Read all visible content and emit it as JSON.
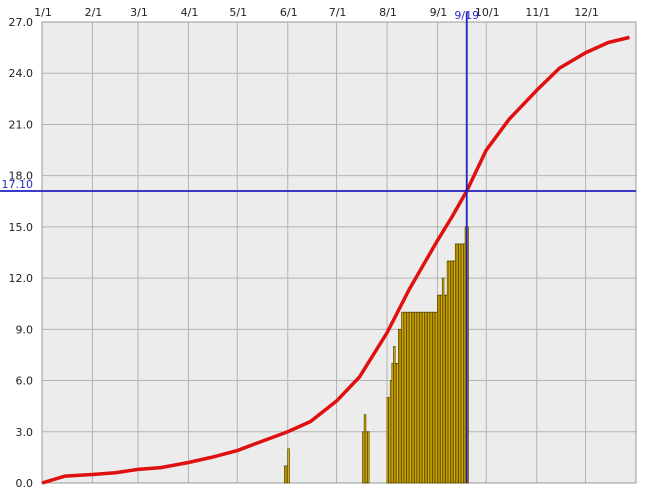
{
  "colors": {
    "plot_background": "#ececec",
    "grid": "#b4b4b4",
    "curve": "#e01010",
    "bar_fill": "#f5c400",
    "bar_stroke": "#5a4a00",
    "crosshair": "#2020c0"
  },
  "chart_data": {
    "type": "bar",
    "title": "",
    "xlabel": "",
    "ylabel": "",
    "x_tick_labels": [
      "1/1",
      "2/1",
      "3/1",
      "4/1",
      "5/1",
      "6/1",
      "7/1",
      "8/1",
      "9/1",
      "10/1",
      "11/1",
      "12/1"
    ],
    "y_tick_labels": [
      "0.0",
      "3.0",
      "6.0",
      "9.0",
      "12.0",
      "15.0",
      "18.0",
      "21.0",
      "24.0",
      "27.0"
    ],
    "ylim": [
      0,
      27
    ],
    "xlim_days": [
      0,
      365
    ],
    "grid": true,
    "crosshair": {
      "x_label": "9/19",
      "y_label": "17.10",
      "x_date": "9/19",
      "y_value": 17.1
    },
    "series": [
      {
        "type": "line",
        "x": [
          "1/1",
          "1/15",
          "2/1",
          "2/15",
          "3/1",
          "3/15",
          "4/1",
          "4/15",
          "5/1",
          "5/15",
          "6/1",
          "6/15",
          "7/1",
          "7/15",
          "8/1",
          "8/15",
          "9/1",
          "9/10",
          "9/19",
          "10/1",
          "10/15",
          "11/1",
          "11/15",
          "12/1",
          "12/15",
          "12/28"
        ],
        "y": [
          0.0,
          0.4,
          0.5,
          0.6,
          0.8,
          0.9,
          1.2,
          1.5,
          1.9,
          2.4,
          3.0,
          3.6,
          4.8,
          6.2,
          8.8,
          11.4,
          14.2,
          15.6,
          17.1,
          19.5,
          21.3,
          23.0,
          24.3,
          25.2,
          25.8,
          26.1
        ]
      },
      {
        "type": "bar",
        "x": [
          "5/30",
          "5/31",
          "6/1",
          "7/17",
          "7/18",
          "7/19",
          "7/20",
          "8/1",
          "8/2",
          "8/3",
          "8/4",
          "8/5",
          "8/6",
          "8/7",
          "8/8",
          "8/9",
          "8/10",
          "8/11",
          "8/12",
          "8/13",
          "8/14",
          "8/15",
          "8/16",
          "8/17",
          "8/18",
          "8/19",
          "8/20",
          "8/21",
          "8/22",
          "8/23",
          "8/24",
          "8/25",
          "8/26",
          "8/27",
          "8/28",
          "8/29",
          "8/30",
          "8/31",
          "9/1",
          "9/2",
          "9/3",
          "9/4",
          "9/5",
          "9/6",
          "9/7",
          "9/8",
          "9/9",
          "9/10",
          "9/11",
          "9/12",
          "9/13",
          "9/14",
          "9/15",
          "9/16",
          "9/17",
          "9/18",
          "9/19"
        ],
        "y": [
          1.0,
          1.0,
          2.0,
          3.0,
          4.0,
          3.0,
          3.0,
          5.0,
          5.0,
          6.0,
          7.0,
          8.0,
          7.0,
          7.0,
          9.0,
          9.0,
          10.0,
          10.0,
          10.0,
          10.0,
          10.0,
          10.0,
          10.0,
          10.0,
          10.0,
          10.0,
          10.0,
          10.0,
          10.0,
          10.0,
          10.0,
          10.0,
          10.0,
          10.0,
          10.0,
          10.0,
          10.0,
          10.0,
          11.0,
          11.0,
          11.0,
          12.0,
          11.0,
          11.0,
          13.0,
          13.0,
          13.0,
          13.0,
          13.0,
          14.0,
          14.0,
          14.0,
          14.0,
          14.0,
          14.0,
          15.0,
          15.0
        ]
      }
    ]
  }
}
